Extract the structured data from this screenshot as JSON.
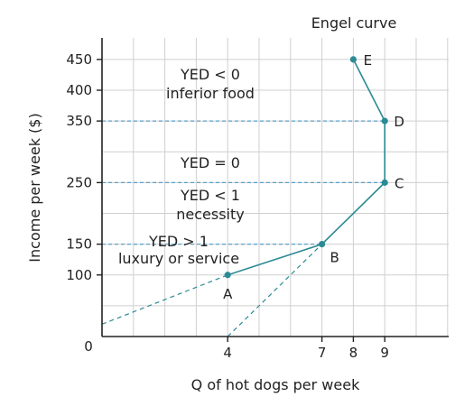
{
  "chart_data": {
    "type": "line",
    "title": "",
    "xlabel": "Q of hot dogs per week",
    "ylabel": "Income per week ($)",
    "origin_label": "0",
    "xlim": [
      0,
      11
    ],
    "ylim": [
      0,
      480
    ],
    "x_ticks": [
      4,
      7,
      8,
      9
    ],
    "y_ticks": [
      100,
      150,
      250,
      350,
      400,
      450
    ],
    "grid": true,
    "series": [
      {
        "name": "Engel curve",
        "points": [
          {
            "label": "A",
            "x": 4,
            "y": 100
          },
          {
            "label": "B",
            "x": 7,
            "y": 150
          },
          {
            "label": "C",
            "x": 9,
            "y": 250
          },
          {
            "label": "D",
            "x": 9,
            "y": 350
          },
          {
            "label": "E",
            "x": 8,
            "y": 450
          }
        ]
      }
    ],
    "reference_lines": {
      "horizontal_dashed_at_y": [
        150,
        250,
        350
      ],
      "dashed_extensions": [
        {
          "from": {
            "x": 0,
            "y": 20
          },
          "to": {
            "x": 4,
            "y": 100
          }
        },
        {
          "from": {
            "x": 4,
            "y": 0
          },
          "to": {
            "x": 7,
            "y": 150
          }
        }
      ]
    },
    "annotations": [
      {
        "lines": [
          "YED < 0",
          "inferior food"
        ]
      },
      {
        "lines": [
          "YED = 0"
        ]
      },
      {
        "lines": [
          "YED < 1",
          "necessity"
        ]
      },
      {
        "lines": [
          "YED > 1",
          "luxury or service"
        ]
      }
    ],
    "colors": {
      "curve": "#2b8a94",
      "grid": "#cfcfcf",
      "axis": "#222222",
      "dashed": "#5a9fc7"
    }
  }
}
